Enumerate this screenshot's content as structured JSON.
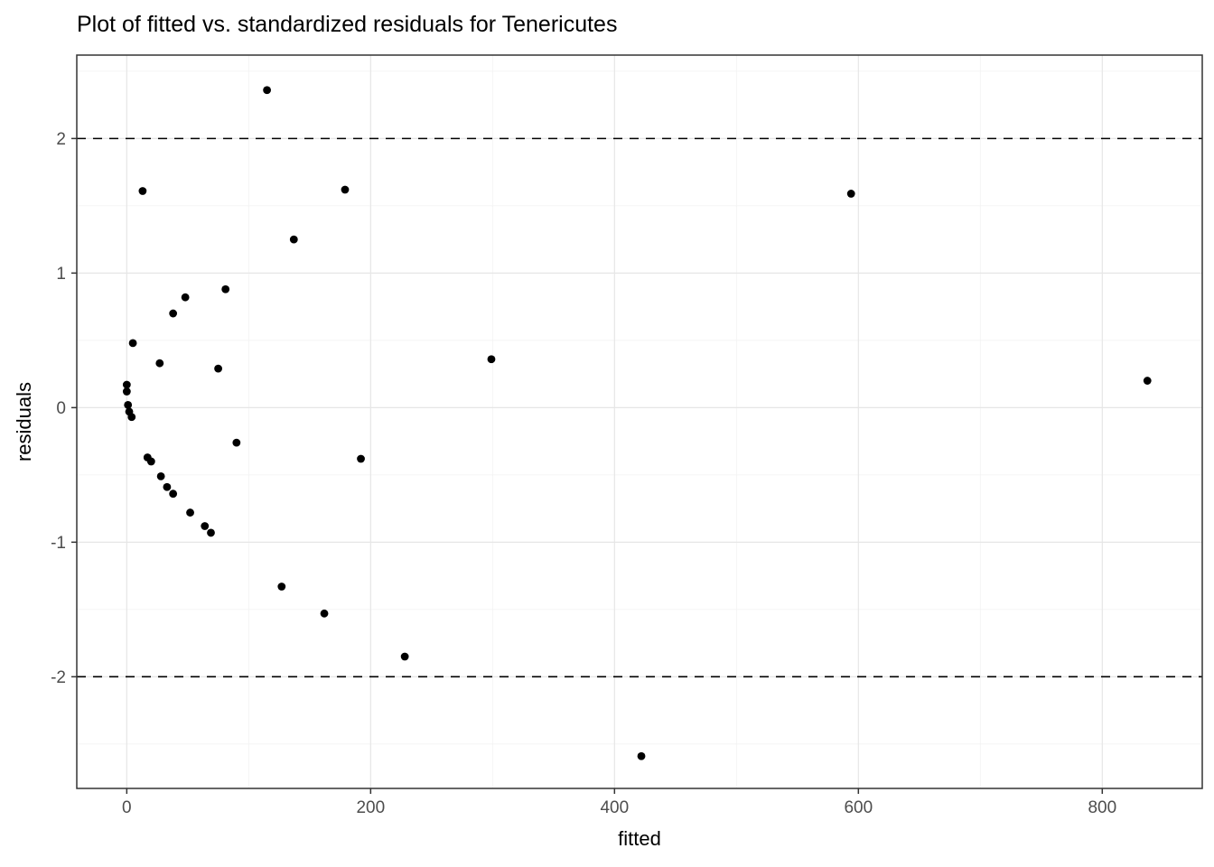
{
  "title": "Plot of fitted vs. standardized residuals for Tenericutes",
  "colors": {
    "point": "#000000",
    "panel_border": "#333333",
    "grid_major": "#E6E6E6",
    "grid_minor": "#F2F2F2",
    "tick_label": "#4D4D4D",
    "dashed_line": "#000000",
    "background": "#FFFFFF"
  },
  "chart_data": {
    "type": "scatter",
    "title": "Plot of fitted vs. standardized residuals for Tenericutes",
    "xlabel": "fitted",
    "ylabel": "residuals",
    "xlim": [
      -41,
      882
    ],
    "ylim": [
      -2.83,
      2.62
    ],
    "x_ticks": [
      0,
      200,
      400,
      600,
      800
    ],
    "y_ticks": [
      -2,
      -1,
      0,
      1,
      2
    ],
    "x_minor_gridlines": [
      100,
      300,
      500,
      700
    ],
    "y_minor_gridlines": [
      -2.5,
      -1.5,
      -0.5,
      0.5,
      1.5,
      2.5
    ],
    "dashed_hlines": [
      2,
      -2
    ],
    "grid": "on",
    "legend_position": "none",
    "points": [
      [
        115,
        2.36
      ],
      [
        13,
        1.61
      ],
      [
        179,
        1.62
      ],
      [
        594,
        1.59
      ],
      [
        137,
        1.25
      ],
      [
        81,
        0.88
      ],
      [
        48,
        0.82
      ],
      [
        38,
        0.7
      ],
      [
        5,
        0.48
      ],
      [
        27,
        0.33
      ],
      [
        75,
        0.29
      ],
      [
        299,
        0.36
      ],
      [
        837,
        0.2
      ],
      [
        0,
        0.17
      ],
      [
        0,
        0.12
      ],
      [
        1,
        0.02
      ],
      [
        2,
        -0.03
      ],
      [
        4,
        -0.07
      ],
      [
        90,
        -0.26
      ],
      [
        17,
        -0.37
      ],
      [
        20,
        -0.4
      ],
      [
        192,
        -0.38
      ],
      [
        28,
        -0.51
      ],
      [
        33,
        -0.59
      ],
      [
        38,
        -0.64
      ],
      [
        52,
        -0.78
      ],
      [
        64,
        -0.88
      ],
      [
        69,
        -0.93
      ],
      [
        127,
        -1.33
      ],
      [
        162,
        -1.53
      ],
      [
        228,
        -1.85
      ],
      [
        422,
        -2.59
      ]
    ]
  }
}
